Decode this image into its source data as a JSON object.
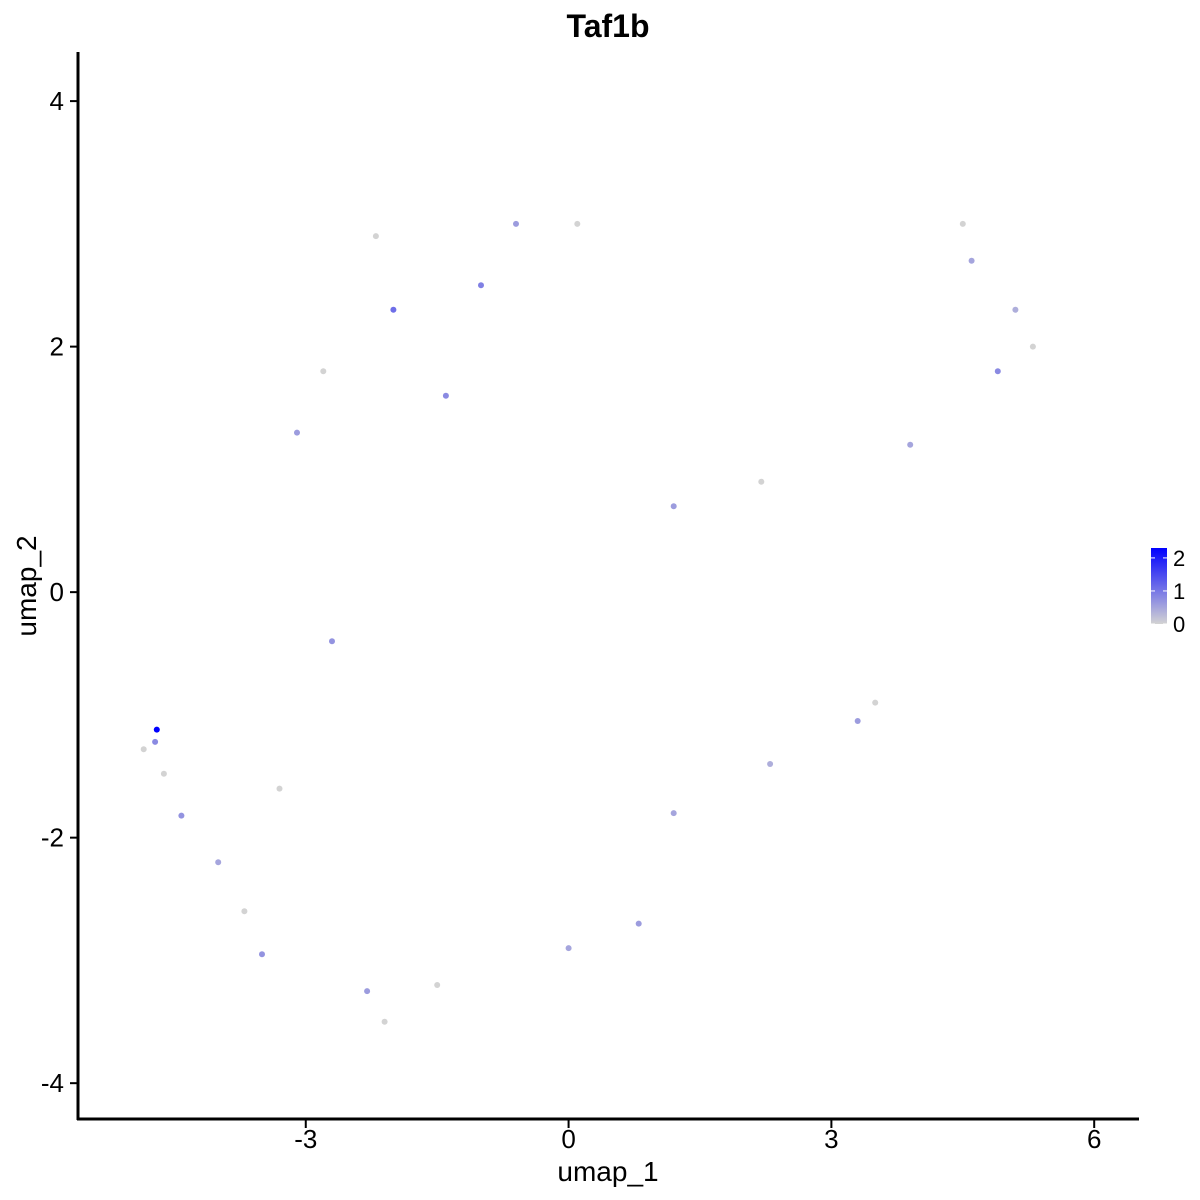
{
  "chart_data": {
    "type": "scatter",
    "title": "Taf1b",
    "xlabel": "umap_1",
    "ylabel": "umap_2",
    "xlim": [
      -5.6,
      6.5
    ],
    "ylim": [
      -4.3,
      4.4
    ],
    "xticks": [
      -3,
      0,
      3,
      6
    ],
    "yticks": [
      -4,
      -2,
      0,
      2,
      4
    ],
    "xtick_labels": [
      "-3",
      "0",
      "3",
      "6"
    ],
    "ytick_labels": [
      "-4",
      "-2",
      "0",
      "2",
      "4"
    ],
    "grid": false,
    "color_scale": {
      "low_color": "#d3d3d3",
      "high_color": "#0000ff",
      "min": 0,
      "max": 2.3,
      "ticks": [
        0,
        1,
        2
      ],
      "tick_labels": [
        "0",
        "1",
        "2"
      ],
      "legend_position": "right"
    },
    "points": [
      [
        -4.7,
        -1.12,
        2.3
      ],
      [
        -4.72,
        -1.22,
        0.8
      ],
      [
        -4.85,
        -1.28,
        0
      ],
      [
        -4.62,
        -1.48,
        0
      ],
      [
        -4.42,
        -1.82,
        0.7
      ],
      [
        -2.0,
        2.3,
        1.1
      ],
      [
        -1.0,
        2.5,
        0.9
      ],
      [
        0.1,
        3.0,
        0
      ],
      [
        -2.2,
        2.9,
        0
      ],
      [
        -0.6,
        3.0,
        0.6
      ],
      [
        4.5,
        3.0,
        0
      ],
      [
        4.6,
        2.7,
        0.5
      ],
      [
        5.1,
        2.3,
        0.4
      ],
      [
        5.3,
        2.0,
        0
      ],
      [
        4.9,
        1.8,
        0.8
      ],
      [
        -3.7,
        -2.6,
        0
      ],
      [
        -3.5,
        -2.95,
        0.7
      ],
      [
        -2.3,
        -3.25,
        0.6
      ],
      [
        -2.1,
        -3.5,
        0
      ],
      [
        -1.5,
        -3.2,
        0
      ],
      [
        0.0,
        -2.9,
        0.5
      ],
      [
        0.8,
        -2.7,
        0.6
      ],
      [
        1.2,
        -1.8,
        0.5
      ],
      [
        2.3,
        -1.4,
        0.4
      ],
      [
        3.3,
        -1.05,
        0.6
      ],
      [
        3.5,
        -0.9,
        0
      ],
      [
        -4.0,
        -2.2,
        0.5
      ],
      [
        -3.3,
        -1.6,
        0
      ],
      [
        -2.7,
        -0.4,
        0.7
      ],
      [
        -3.1,
        1.3,
        0.6
      ],
      [
        -2.8,
        1.8,
        0
      ],
      [
        -1.4,
        1.6,
        0.8
      ],
      [
        1.2,
        0.7,
        0.6
      ],
      [
        2.2,
        0.9,
        0
      ],
      [
        3.9,
        1.2,
        0.5
      ]
    ]
  }
}
